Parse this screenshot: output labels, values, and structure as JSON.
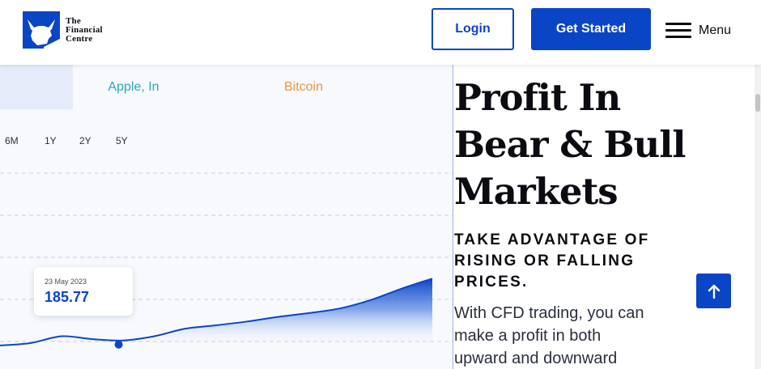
{
  "header": {
    "logo_lines": [
      "The",
      "Financial",
      "Centre"
    ],
    "login_label": "Login",
    "get_started_label": "Get Started",
    "menu_label": "Menu"
  },
  "chart_panel": {
    "tabs": [
      {
        "label": ""
      },
      {
        "label": "Apple, In"
      },
      {
        "label": "Bitcoin"
      }
    ],
    "ranges": [
      "6M",
      "1Y",
      "2Y",
      "5Y"
    ],
    "tooltip": {
      "date": "23 May 2023",
      "value": "185.77"
    }
  },
  "chart_data": {
    "type": "area",
    "series": [
      {
        "values": [
          0.02,
          0.08,
          0.24,
          0.17,
          0.14,
          0.24,
          0.42,
          0.5,
          0.59,
          0.7,
          0.79,
          0.9,
          1.1,
          1.37,
          1.61
        ]
      }
    ],
    "grid": true,
    "accent_color": "#0a45c5"
  },
  "hero": {
    "title_lines": [
      "Profit In",
      "Bear & Bull",
      "Markets"
    ],
    "subtitle_lines": [
      "TAKE ADVANTAGE OF",
      "RISING OR FALLING",
      "PRICES."
    ],
    "body_lines": [
      "With CFD trading, you can",
      "make a profit in both",
      "upward and downward"
    ]
  },
  "colors": {
    "brand": "#0a45c5",
    "apple_tab": "#2aa7b6",
    "bitcoin_tab": "#e3964a"
  }
}
